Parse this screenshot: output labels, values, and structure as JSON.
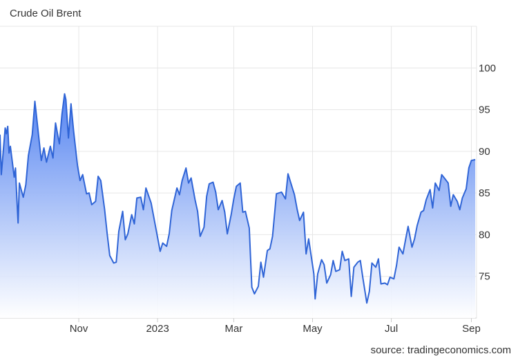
{
  "chart_data": {
    "type": "area",
    "title": "Crude Oil Brent",
    "source": "source: tradingeconomics.com",
    "xlabel": "",
    "ylabel": "",
    "x_range": [
      "2022-09-01",
      "2023-09-05"
    ],
    "ylim": [
      70,
      105
    ],
    "y_ticks": [
      75,
      80,
      85,
      90,
      95,
      100
    ],
    "x_ticks": [
      {
        "label": "Nov",
        "date": "2022-11-01"
      },
      {
        "label": "2023",
        "date": "2023-01-01"
      },
      {
        "label": "Mar",
        "date": "2023-03-01"
      },
      {
        "label": "May",
        "date": "2023-05-01"
      },
      {
        "label": "Jul",
        "date": "2023-07-01"
      },
      {
        "label": "Sep",
        "date": "2023-09-01"
      }
    ],
    "grid": true,
    "y_axis_side": "right",
    "colors": {
      "line": "#2f64d6",
      "fill_top": "#4a7cf0",
      "fill_bottom": "#ffffff",
      "grid": "#e6e6e6",
      "text": "#333333"
    },
    "series": [
      {
        "values": [
          [
            "2022-09-01",
            92.0
          ],
          [
            "2022-09-02",
            87.2
          ],
          [
            "2022-09-05",
            92.8
          ],
          [
            "2022-09-06",
            92.1
          ],
          [
            "2022-09-07",
            93.0
          ],
          [
            "2022-09-08",
            89.8
          ],
          [
            "2022-09-09",
            90.6
          ],
          [
            "2022-09-12",
            86.9
          ],
          [
            "2022-09-13",
            88.0
          ],
          [
            "2022-09-14",
            84.5
          ],
          [
            "2022-09-15",
            81.4
          ],
          [
            "2022-09-16",
            86.2
          ],
          [
            "2022-09-19",
            84.5
          ],
          [
            "2022-09-21",
            86.0
          ],
          [
            "2022-09-23",
            89.5
          ],
          [
            "2022-09-26",
            92.0
          ],
          [
            "2022-09-28",
            96.0
          ],
          [
            "2022-09-30",
            93.2
          ],
          [
            "2022-10-03",
            88.9
          ],
          [
            "2022-10-05",
            90.4
          ],
          [
            "2022-10-07",
            88.7
          ],
          [
            "2022-10-10",
            90.6
          ],
          [
            "2022-10-12",
            89.2
          ],
          [
            "2022-10-14",
            93.4
          ],
          [
            "2022-10-17",
            90.9
          ],
          [
            "2022-10-19",
            94.5
          ],
          [
            "2022-10-21",
            96.9
          ],
          [
            "2022-10-22",
            96.2
          ],
          [
            "2022-10-24",
            91.6
          ],
          [
            "2022-10-26",
            95.7
          ],
          [
            "2022-10-28",
            92.4
          ],
          [
            "2022-10-31",
            88.3
          ],
          [
            "2022-11-02",
            86.5
          ],
          [
            "2022-11-04",
            87.2
          ],
          [
            "2022-11-07",
            84.9
          ],
          [
            "2022-11-09",
            85.0
          ],
          [
            "2022-11-11",
            83.6
          ],
          [
            "2022-11-14",
            84.0
          ],
          [
            "2022-11-16",
            87.0
          ],
          [
            "2022-11-18",
            86.5
          ],
          [
            "2022-11-21",
            83.0
          ],
          [
            "2022-11-23",
            80.1
          ],
          [
            "2022-11-25",
            77.5
          ],
          [
            "2022-11-28",
            76.6
          ],
          [
            "2022-11-30",
            76.7
          ],
          [
            "2022-12-02",
            80.4
          ],
          [
            "2022-12-05",
            82.8
          ],
          [
            "2022-12-07",
            79.4
          ],
          [
            "2022-12-09",
            80.1
          ],
          [
            "2022-12-12",
            82.4
          ],
          [
            "2022-12-14",
            81.3
          ],
          [
            "2022-12-16",
            84.4
          ],
          [
            "2022-12-19",
            84.5
          ],
          [
            "2022-12-21",
            83.0
          ],
          [
            "2022-12-23",
            85.6
          ],
          [
            "2022-12-27",
            83.8
          ],
          [
            "2023-01-03",
            78.0
          ],
          [
            "2023-01-05",
            79.0
          ],
          [
            "2023-01-08",
            78.6
          ],
          [
            "2023-01-10",
            80.1
          ],
          [
            "2023-01-12",
            82.9
          ],
          [
            "2023-01-16",
            85.6
          ],
          [
            "2023-01-18",
            84.8
          ],
          [
            "2023-01-20",
            86.5
          ],
          [
            "2023-01-23",
            88.0
          ],
          [
            "2023-01-25",
            86.2
          ],
          [
            "2023-01-27",
            86.8
          ],
          [
            "2023-01-30",
            84.2
          ],
          [
            "2023-02-01",
            82.8
          ],
          [
            "2023-02-03",
            79.8
          ],
          [
            "2023-02-06",
            80.9
          ],
          [
            "2023-02-08",
            84.6
          ],
          [
            "2023-02-10",
            86.1
          ],
          [
            "2023-02-13",
            86.3
          ],
          [
            "2023-02-15",
            85.1
          ],
          [
            "2023-02-17",
            83.0
          ],
          [
            "2023-02-20",
            84.1
          ],
          [
            "2023-02-22",
            82.7
          ],
          [
            "2023-02-24",
            80.1
          ],
          [
            "2023-02-27",
            82.4
          ],
          [
            "2023-03-01",
            84.3
          ],
          [
            "2023-03-03",
            85.8
          ],
          [
            "2023-03-06",
            86.2
          ],
          [
            "2023-03-08",
            82.7
          ],
          [
            "2023-03-10",
            82.8
          ],
          [
            "2023-03-13",
            80.8
          ],
          [
            "2023-03-15",
            73.7
          ],
          [
            "2023-03-17",
            72.9
          ],
          [
            "2023-03-20",
            73.8
          ],
          [
            "2023-03-22",
            76.7
          ],
          [
            "2023-03-24",
            74.9
          ],
          [
            "2023-03-27",
            78.1
          ],
          [
            "2023-03-29",
            78.3
          ],
          [
            "2023-03-31",
            79.8
          ],
          [
            "2023-04-03",
            84.9
          ],
          [
            "2023-04-05",
            85.0
          ],
          [
            "2023-04-07",
            85.1
          ],
          [
            "2023-04-10",
            84.3
          ],
          [
            "2023-04-12",
            87.3
          ],
          [
            "2023-04-14",
            86.3
          ],
          [
            "2023-04-17",
            84.8
          ],
          [
            "2023-04-19",
            83.1
          ],
          [
            "2023-04-21",
            81.7
          ],
          [
            "2023-04-24",
            82.7
          ],
          [
            "2023-04-26",
            77.7
          ],
          [
            "2023-04-28",
            79.5
          ],
          [
            "2023-05-02",
            75.3
          ],
          [
            "2023-05-03",
            72.3
          ],
          [
            "2023-05-05",
            75.3
          ],
          [
            "2023-05-08",
            77.0
          ],
          [
            "2023-05-10",
            76.4
          ],
          [
            "2023-05-12",
            74.2
          ],
          [
            "2023-05-15",
            75.2
          ],
          [
            "2023-05-17",
            76.9
          ],
          [
            "2023-05-19",
            75.6
          ],
          [
            "2023-05-22",
            75.8
          ],
          [
            "2023-05-24",
            78.0
          ],
          [
            "2023-05-26",
            76.9
          ],
          [
            "2023-05-29",
            77.1
          ],
          [
            "2023-05-31",
            72.6
          ],
          [
            "2023-06-02",
            76.1
          ],
          [
            "2023-06-05",
            76.7
          ],
          [
            "2023-06-07",
            76.9
          ],
          [
            "2023-06-09",
            74.8
          ],
          [
            "2023-06-12",
            71.8
          ],
          [
            "2023-06-14",
            73.2
          ],
          [
            "2023-06-16",
            76.6
          ],
          [
            "2023-06-19",
            76.1
          ],
          [
            "2023-06-21",
            77.1
          ],
          [
            "2023-06-23",
            74.1
          ],
          [
            "2023-06-26",
            74.2
          ],
          [
            "2023-06-28",
            74.0
          ],
          [
            "2023-06-30",
            74.9
          ],
          [
            "2023-07-03",
            74.7
          ],
          [
            "2023-07-05",
            76.3
          ],
          [
            "2023-07-07",
            78.5
          ],
          [
            "2023-07-10",
            77.7
          ],
          [
            "2023-07-12",
            79.4
          ],
          [
            "2023-07-14",
            81.0
          ],
          [
            "2023-07-17",
            78.5
          ],
          [
            "2023-07-19",
            79.5
          ],
          [
            "2023-07-21",
            81.1
          ],
          [
            "2023-07-24",
            82.7
          ],
          [
            "2023-07-26",
            82.9
          ],
          [
            "2023-07-28",
            84.2
          ],
          [
            "2023-07-31",
            85.4
          ],
          [
            "2023-08-02",
            83.2
          ],
          [
            "2023-08-04",
            86.2
          ],
          [
            "2023-08-07",
            85.3
          ],
          [
            "2023-08-09",
            87.2
          ],
          [
            "2023-08-11",
            86.8
          ],
          [
            "2023-08-14",
            86.2
          ],
          [
            "2023-08-16",
            83.4
          ],
          [
            "2023-08-18",
            84.8
          ],
          [
            "2023-08-21",
            84.0
          ],
          [
            "2023-08-23",
            83.0
          ],
          [
            "2023-08-25",
            84.4
          ],
          [
            "2023-08-28",
            85.5
          ],
          [
            "2023-08-30",
            88.0
          ],
          [
            "2023-09-01",
            88.9
          ],
          [
            "2023-09-04",
            89.0
          ]
        ]
      }
    ]
  }
}
